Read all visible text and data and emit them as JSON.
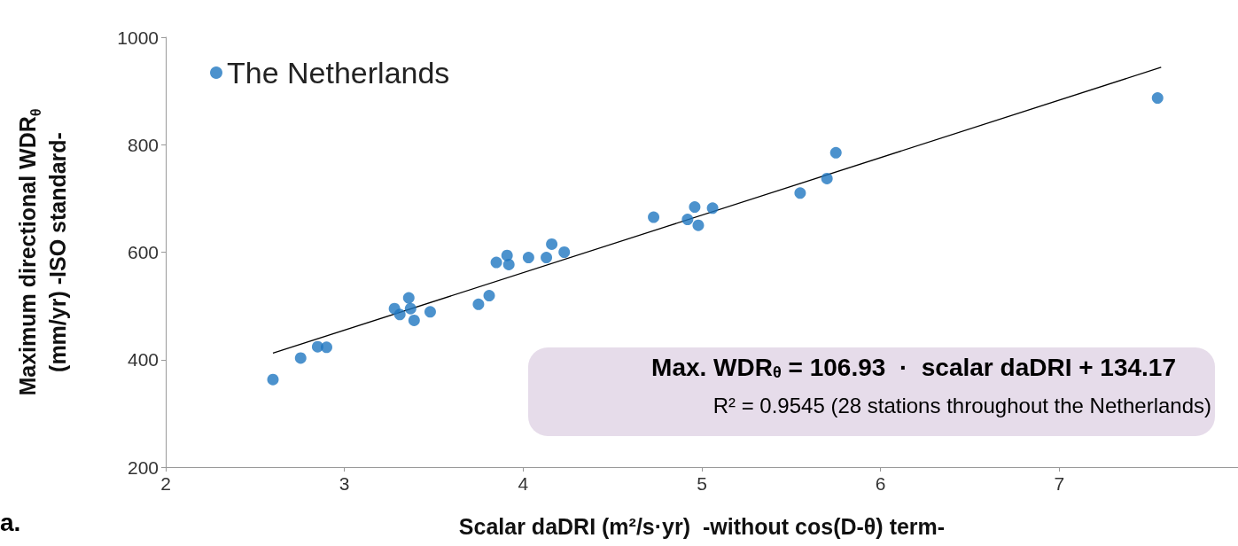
{
  "chart_data": {
    "type": "scatter",
    "xlabel": "Scalar daDRI (m²/s·yr)  -without cos(D-θ) term-",
    "ylabel": "Maximum directional WDR$_{θ}$\n(mm/yr) -ISO standard-",
    "xlim": [
      2,
      8
    ],
    "xticks": [
      2,
      3,
      4,
      5,
      6,
      7
    ],
    "ylim": [
      200,
      1000
    ],
    "yticks": [
      200,
      400,
      600,
      800,
      1000
    ],
    "grid": false,
    "legend": "top left",
    "marker": "circle",
    "series": [
      {
        "name": "The Netherlands",
        "color": "#1f77c0",
        "x": [
          2.6,
          2.755,
          2.85,
          2.9,
          3.28,
          3.31,
          3.36,
          3.37,
          3.39,
          3.48,
          3.75,
          3.81,
          3.85,
          3.91,
          3.92,
          4.03,
          4.13,
          4.16,
          4.23,
          4.73,
          4.92,
          4.96,
          4.98,
          5.06,
          5.55,
          5.7,
          5.75,
          7.55
        ],
        "values": [
          363,
          403,
          424,
          423,
          495,
          484,
          515,
          495,
          473,
          489,
          503,
          519,
          581,
          594,
          577,
          590,
          590,
          615,
          600,
          665,
          661,
          684,
          650,
          682,
          710,
          737,
          785,
          887
        ]
      },
      {
        "type": "line",
        "color": "#000000",
        "marker": "none",
        "x": [
          2.6,
          7.57
        ],
        "values": [
          412,
          944
        ]
      }
    ],
    "annotations": [
      "Max. WDR$_{θ}$ = 106.93  ·  scalar daDRI + 134.17",
      "R² = 0.9545 (28 stations throughout the Netherlands)",
      "a."
    ]
  }
}
